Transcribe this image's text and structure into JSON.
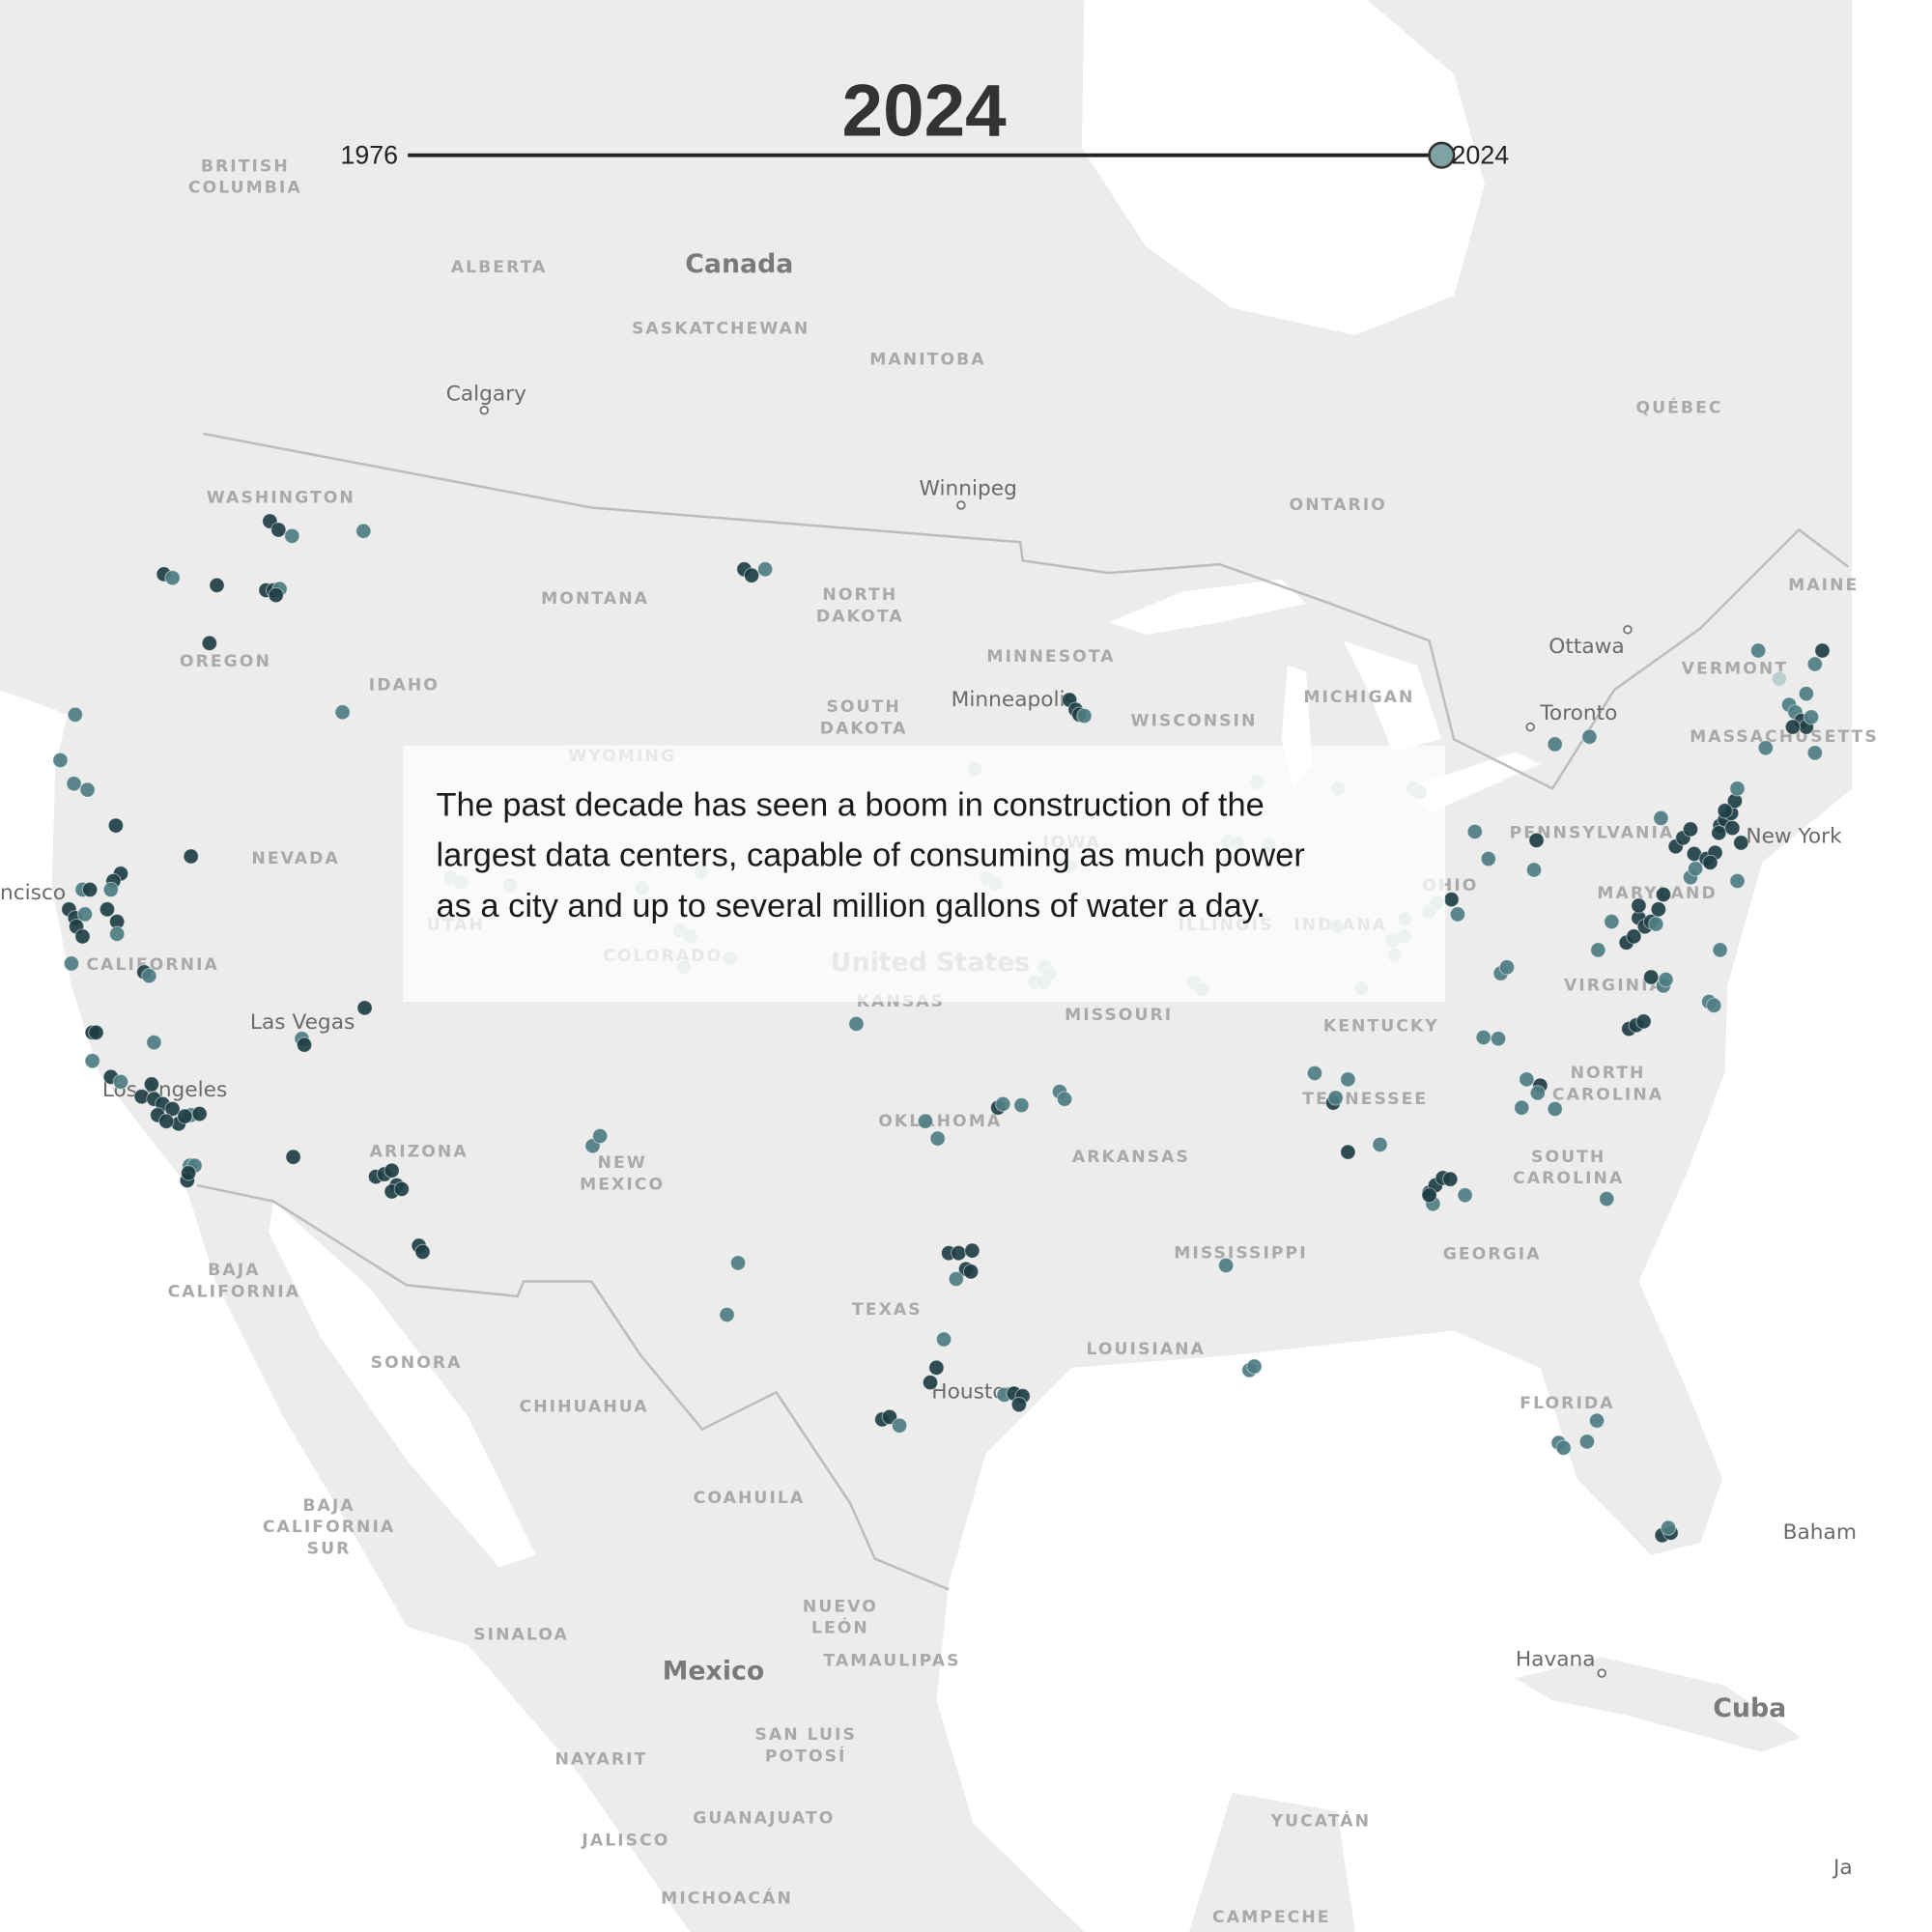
{
  "title": "2024",
  "slider": {
    "start": "1976",
    "end": "2024"
  },
  "caption_lines": [
    "The past decade has seen a boom in construction of the",
    "largest data centers, capable of consuming as much power",
    "as a city and up to several million gallons of water a day."
  ],
  "countries": [
    "Canada",
    "United States",
    "Mexico",
    "Cuba"
  ],
  "cities": [
    "Calgary",
    "Winnipeg",
    "Ottawa",
    "Toronto",
    "Minneapolis",
    "New York",
    "Las Vegas",
    "Los Angeles",
    "Houston",
    "Havana",
    "ncisco",
    "Baham",
    "Ja"
  ],
  "regions": [
    [
      "BRITISH",
      "COLUMBIA"
    ],
    [
      "ALBERTA"
    ],
    [
      "SASKATCHEWAN"
    ],
    [
      "MANITOBA"
    ],
    [
      "ONTARIO"
    ],
    [
      "QUÉBEC"
    ],
    [
      "WASHINGTON"
    ],
    [
      "OREGON"
    ],
    [
      "IDAHO"
    ],
    [
      "MONTANA"
    ],
    [
      "NORTH",
      "DAKOTA"
    ],
    [
      "SOUTH",
      "DAKOTA"
    ],
    [
      "MINNESOTA"
    ],
    [
      "WISCONSIN"
    ],
    [
      "MICHIGAN"
    ],
    [
      "WYOMING"
    ],
    [
      "NEVADA"
    ],
    [
      "UTAH"
    ],
    [
      "COLORADO"
    ],
    [
      "KANSAS"
    ],
    [
      "CALIFORNIA"
    ],
    [
      "ARIZONA"
    ],
    [
      "NEW",
      "MEXICO"
    ],
    [
      "OKLAHOMA"
    ],
    [
      "TEXAS"
    ],
    [
      "MISSOURI"
    ],
    [
      "ARKANSAS"
    ],
    [
      "KENTUCKY"
    ],
    [
      "TENNESSEE"
    ],
    [
      "MISSISSIPPI"
    ],
    [
      "LOUISIANA"
    ],
    [
      "GEORGIA"
    ],
    [
      "NORTH",
      "CAROLINA"
    ],
    [
      "SOUTH",
      "CAROLINA"
    ],
    [
      "VIRGINIA"
    ],
    [
      "PENNSYLVANIA"
    ],
    [
      "OHIO"
    ],
    [
      "ILLINOIS"
    ],
    [
      "INDIANA"
    ],
    [
      "IOWA"
    ],
    [
      "MARYLAND"
    ],
    [
      "VERMONT"
    ],
    [
      "MAINE"
    ],
    [
      "MASSACHUSETTS"
    ],
    [
      "FLORIDA"
    ],
    [
      "BAJA",
      "CALIFORNIA"
    ],
    [
      "SONORA"
    ],
    [
      "CHIHUAHUA"
    ],
    [
      "COAHUILA"
    ],
    [
      "BAJA",
      "CALIFORNIA",
      "SUR"
    ],
    [
      "NUEVO",
      "LEÓN"
    ],
    [
      "SINALOA"
    ],
    [
      "TAMAULIPAS"
    ],
    [
      "NAYARIT"
    ],
    [
      "SAN LUIS",
      "POTOSÍ"
    ],
    [
      "GUANAJUATO"
    ],
    [
      "JALISCO"
    ],
    [
      "MICHOACÁN"
    ],
    [
      "YUCATÁN"
    ],
    [
      "CAMPECHE"
    ]
  ]
}
